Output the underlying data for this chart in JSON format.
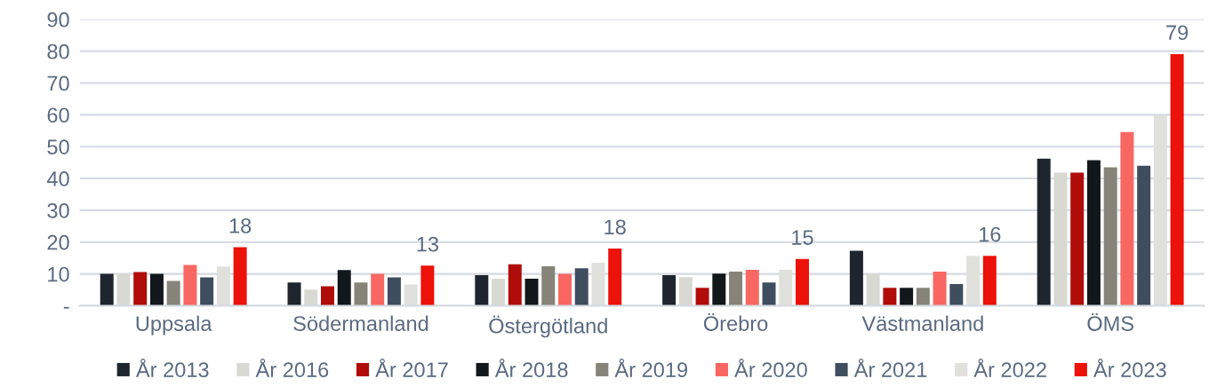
{
  "chart_data": {
    "type": "bar",
    "categories": [
      "Uppsala",
      "Södermanland",
      "Östergötland",
      "Örebro",
      "Västmanland",
      "ÖMS"
    ],
    "series": [
      {
        "name": "År 2013",
        "color": "#1f252e",
        "values": [
          10.0,
          7.3,
          9.6,
          9.6,
          17.3,
          46.2
        ]
      },
      {
        "name": "År 2016",
        "color": "#d9d9d4",
        "values": [
          10.0,
          5.1,
          8.5,
          9.0,
          10.0,
          41.8
        ]
      },
      {
        "name": "År 2017",
        "color": "#b00c0a",
        "values": [
          10.6,
          6.1,
          13.0,
          5.6,
          5.6,
          41.8
        ]
      },
      {
        "name": "År 2018",
        "color": "#12171b",
        "values": [
          10.0,
          11.2,
          8.5,
          10.1,
          5.6,
          45.7
        ]
      },
      {
        "name": "År 2019",
        "color": "#868479",
        "values": [
          7.8,
          7.3,
          12.4,
          10.7,
          5.6,
          43.5
        ]
      },
      {
        "name": "År 2020",
        "color": "#f96762",
        "values": [
          12.8,
          10.0,
          10.0,
          11.3,
          10.7,
          54.6
        ]
      },
      {
        "name": "År 2021",
        "color": "#3f4e5e",
        "values": [
          8.9,
          8.9,
          11.8,
          7.3,
          6.8,
          44.0
        ]
      },
      {
        "name": "År 2022",
        "color": "#e0e0dc",
        "values": [
          12.3,
          6.7,
          13.5,
          11.3,
          15.7,
          59.9
        ]
      },
      {
        "name": "År 2023",
        "color": "#ec1109",
        "values": [
          18.4,
          12.6,
          18.0,
          14.7,
          15.7,
          79.1
        ],
        "value_labels": [
          "18",
          "13",
          "18",
          "15",
          "16",
          "79"
        ]
      }
    ],
    "ylim": [
      0,
      90
    ],
    "yticks": [
      {
        "value": 0,
        "label": "-"
      },
      10,
      20,
      30,
      40,
      50,
      60,
      70,
      80,
      90
    ],
    "grid": "y",
    "legend": "bottom"
  }
}
